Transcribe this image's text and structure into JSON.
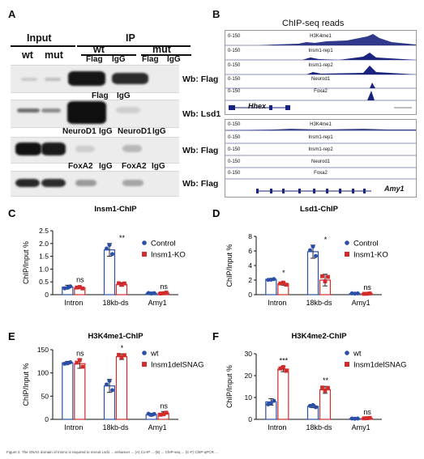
{
  "figure": {
    "panelA": {
      "label": "A",
      "input_label": "Input",
      "ip_label": "IP",
      "wt": "wt",
      "mut": "mut",
      "lanes_flag": [
        "Flag",
        "IgG",
        "Flag",
        "IgG"
      ],
      "lanes_flag2": [
        "Flag",
        "IgG"
      ],
      "lanes_neurod": [
        "NeuroD1",
        "IgG",
        "NeuroD1",
        "IgG"
      ],
      "lanes_foxa": [
        "FoxA2",
        "IgG",
        "FoxA2",
        "IgG"
      ],
      "wb": [
        "Wb: Flag",
        "Wb: Lsd1",
        "Wb: Flag",
        "Wb: Flag"
      ]
    },
    "panelB": {
      "label": "B",
      "title": "ChIP-seq reads",
      "scale": "0-150",
      "tracks": [
        "H3K4me1",
        "Insm1-rep1",
        "Insm1-rep2",
        "Neurod1",
        "Foxa2"
      ],
      "gene1": "Hhex",
      "gene2": "Amy1"
    },
    "caption": "Figure 2. The SNAG domain of Insm1 is required to recruit Lsd1 ... enhancer ... (A) Co-IP ... (B) ... ChIP-seq ... (C-F) ChIP-qPCR ..."
  },
  "chart_data": [
    {
      "type": "bar",
      "panel": "C",
      "title": "Insm1-ChIP",
      "ylabel": "ChIP/Input %",
      "categories": [
        "Intron",
        "18kb-ds",
        "Amy1"
      ],
      "ylim": [
        0,
        2.5
      ],
      "yticks": [
        0,
        0.5,
        1.0,
        1.5,
        2.0,
        2.5
      ],
      "ytick_labels": [
        "0",
        "0.5",
        "1.0",
        "1.5",
        "2.0",
        "2.5"
      ],
      "series": [
        {
          "name": "Control",
          "color": "#2b4fa8",
          "values": [
            0.3,
            1.75,
            0.05
          ],
          "err": [
            0.07,
            0.25,
            0.02
          ]
        },
        {
          "name": "Insm1-KO",
          "color": "#d32a2a",
          "values": [
            0.27,
            0.4,
            0.07
          ],
          "err": [
            0.04,
            0.07,
            0.03
          ]
        }
      ],
      "sig": [
        "ns",
        "**",
        "ns"
      ]
    },
    {
      "type": "bar",
      "panel": "D",
      "title": "Lsd1-ChIP",
      "ylabel": "ChIP/Input %",
      "categories": [
        "Intron",
        "18kb-ds",
        "Amy1"
      ],
      "ylim": [
        0,
        8
      ],
      "yticks": [
        0,
        2,
        4,
        6,
        8
      ],
      "ytick_labels": [
        "0",
        "2",
        "4",
        "6",
        "8"
      ],
      "series": [
        {
          "name": "Control",
          "color": "#2b4fa8",
          "values": [
            2.1,
            5.9,
            0.15
          ],
          "err": [
            0.1,
            0.9,
            0.05
          ]
        },
        {
          "name": "Insm1-KO",
          "color": "#d32a2a",
          "values": [
            1.5,
            2.0,
            0.15
          ],
          "err": [
            0.2,
            0.8,
            0.05
          ]
        }
      ],
      "sig": [
        "*",
        "*",
        "ns"
      ]
    },
    {
      "type": "bar",
      "panel": "E",
      "title": "H3K4me1-ChIP",
      "ylabel": "ChIP/Input %",
      "categories": [
        "Intron",
        "18kb-ds",
        "Amy1"
      ],
      "ylim": [
        0,
        150
      ],
      "yticks": [
        0,
        50,
        100,
        150
      ],
      "ytick_labels": [
        "0",
        "50",
        "100",
        "150"
      ],
      "series": [
        {
          "name": "wt",
          "color": "#2b4fa8",
          "values": [
            122,
            72,
            10
          ],
          "err": [
            3,
            14,
            3
          ]
        },
        {
          "name": "Insm1delSNAG",
          "color": "#d32a2a",
          "values": [
            120,
            135,
            13
          ],
          "err": [
            10,
            6,
            4
          ]
        }
      ],
      "sig": [
        "ns",
        "*",
        "ns"
      ]
    },
    {
      "type": "bar",
      "panel": "F",
      "title": "H3K4me2-ChIP",
      "ylabel": "ChIP/Input %",
      "categories": [
        "Intron",
        "18kb-ds",
        "Amy1"
      ],
      "ylim": [
        0,
        30
      ],
      "yticks": [
        0,
        10,
        20,
        30
      ],
      "ytick_labels": [
        "0",
        "10",
        "20",
        "30"
      ],
      "series": [
        {
          "name": "wt",
          "color": "#2b4fa8",
          "values": [
            8,
            6,
            0.3
          ],
          "err": [
            1.5,
            0.7,
            0.1
          ]
        },
        {
          "name": "Insm1delSNAG",
          "color": "#d32a2a",
          "values": [
            23,
            13.5,
            0.6
          ],
          "err": [
            1.2,
            1.6,
            0.2
          ]
        }
      ],
      "sig": [
        "***",
        "**",
        "ns"
      ]
    }
  ]
}
